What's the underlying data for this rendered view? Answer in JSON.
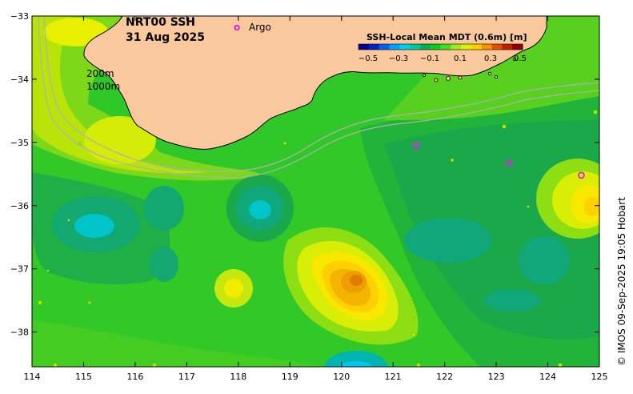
{
  "title": {
    "product": "NRT00 SSH",
    "date": "31 Aug 2025"
  },
  "legend": {
    "marker_symbol": "o",
    "label": "Argo",
    "marker_color": "#e020e0"
  },
  "colorbar": {
    "title": "SSH-Local Mean MDT (0.6m) [m]",
    "ticks": [
      "−0.5",
      "−0.3",
      "−0.1",
      "0.1",
      "0.3",
      "0.5"
    ],
    "colors": [
      "#000090",
      "#0020c8",
      "#0060f0",
      "#00a0ff",
      "#00d0e8",
      "#00c8a0",
      "#00b050",
      "#00d020",
      "#40e020",
      "#a0e820",
      "#e0f000",
      "#ffd000",
      "#ff9000",
      "#e05000",
      "#c02000",
      "#900000"
    ]
  },
  "isobaths": {
    "shallow": "200m",
    "deep": "1000m"
  },
  "axes": {
    "lon_ticks": [
      "114",
      "115",
      "116",
      "117",
      "118",
      "119",
      "120",
      "121",
      "122",
      "123",
      "124",
      "125"
    ],
    "lat_ticks": [
      "−33",
      "−34",
      "−35",
      "−36",
      "−37",
      "−38"
    ],
    "lon_range": [
      114,
      125
    ],
    "lat_range": [
      -38.55,
      -33.0
    ]
  },
  "credit": "© IMOS 09-Sep-2025 19:05 Hobart",
  "colors": {
    "land": "#f9c79b",
    "ocean_base": "#33cc22",
    "coast": "#000000",
    "isobath": "#b0b0b0"
  },
  "argo_floats": [
    {
      "lon": 121.45,
      "lat": -35.05
    },
    {
      "lon": 123.25,
      "lat": -35.33
    },
    {
      "lon": 124.65,
      "lat": -35.52
    }
  ]
}
